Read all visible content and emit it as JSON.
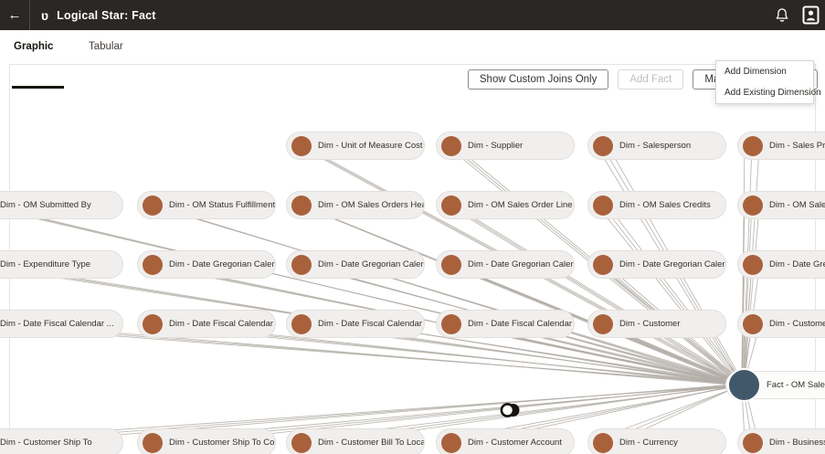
{
  "header": {
    "title": "Logical Star: Fact"
  },
  "icons": {
    "back": "←",
    "logical_star": "ʋ",
    "caret": "▾"
  },
  "tabs": [
    {
      "label": "Graphic",
      "active": true
    },
    {
      "label": "Tabular",
      "active": false
    }
  ],
  "toolbar": {
    "show_custom_joins_label": "Show Custom Joins Only",
    "add_fact_label": "Add Fact",
    "manage_dimension_label": "Manage Dimension"
  },
  "menu": {
    "items": [
      "Add Dimension",
      "Add Existing Dimension"
    ]
  },
  "colors": {
    "header_bg": "#2a2725",
    "dimension_accent": "#a9613c",
    "fact_accent": "#41586a",
    "line": "#b2ada6"
  },
  "diagram": {
    "fact": {
      "label": "Fact - OM Sales Ord..."
    },
    "nodes": [
      {
        "label": "Dim - Unit of Measure Cost ...",
        "col": 2,
        "row": 0
      },
      {
        "label": "Dim - Supplier",
        "col": 3,
        "row": 0
      },
      {
        "label": "Dim - Salesperson",
        "col": 4,
        "row": 0
      },
      {
        "label": "Dim - Sales Profit C...",
        "col": 5,
        "row": 0
      },
      {
        "label": "Dim - OM Submitted By",
        "col": 0,
        "row": 1
      },
      {
        "label": "Dim - OM Status Fulfillment...",
        "col": 1,
        "row": 1
      },
      {
        "label": "Dim - OM Sales Orders Hea...",
        "col": 2,
        "row": 1
      },
      {
        "label": "Dim - OM Sales Order Line ...",
        "col": 3,
        "row": 1
      },
      {
        "label": "Dim - OM Sales Credits",
        "col": 4,
        "row": 1
      },
      {
        "label": "Dim - OM Sales Bus...",
        "col": 5,
        "row": 1
      },
      {
        "label": "Dim - Expenditure Type",
        "col": 0,
        "row": 2
      },
      {
        "label": "Dim - Date Gregorian Calen...",
        "col": 1,
        "row": 2
      },
      {
        "label": "Dim - Date Gregorian Calen...",
        "col": 2,
        "row": 2
      },
      {
        "label": "Dim - Date Gregorian Calen...",
        "col": 3,
        "row": 2
      },
      {
        "label": "Dim - Date Gregorian Calen...",
        "col": 4,
        "row": 2
      },
      {
        "label": "Dim - Date Gregoria...",
        "col": 5,
        "row": 2
      },
      {
        "label": "Dim - Date Fiscal Calendar ...",
        "col": 0,
        "row": 3
      },
      {
        "label": "Dim - Date Fiscal Calendar ...",
        "col": 1,
        "row": 3
      },
      {
        "label": "Dim - Date Fiscal Calendar ...",
        "col": 2,
        "row": 3
      },
      {
        "label": "Dim - Date Fiscal Calendar ...",
        "col": 3,
        "row": 3
      },
      {
        "label": "Dim - Customer",
        "col": 4,
        "row": 3
      },
      {
        "label": "Dim - Customer Sol...",
        "col": 5,
        "row": 3
      },
      {
        "label": "Dim - Customer Ship To",
        "col": 0,
        "row": 4
      },
      {
        "label": "Dim - Customer Ship To Co...",
        "col": 1,
        "row": 4
      },
      {
        "label": "Dim - Customer Bill To Loca...",
        "col": 2,
        "row": 4
      },
      {
        "label": "Dim - Customer Account",
        "col": 3,
        "row": 4
      },
      {
        "label": "Dim - Currency",
        "col": 4,
        "row": 4
      },
      {
        "label": "Dim - Business Uni...",
        "col": 5,
        "row": 4
      }
    ]
  }
}
